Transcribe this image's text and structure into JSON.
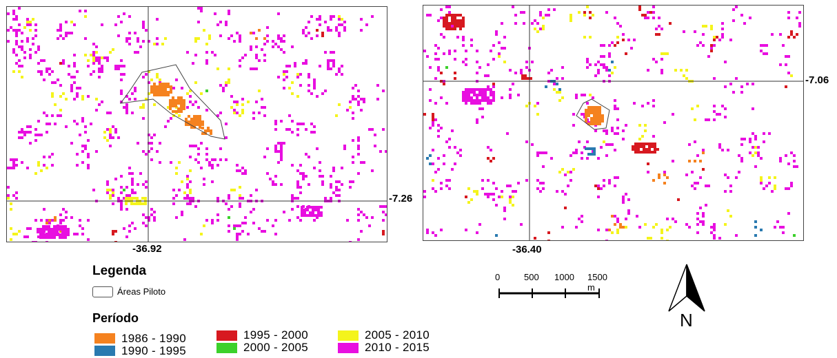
{
  "maps": {
    "left": {
      "lon_label": "-36.92",
      "lat_label": "-7.26"
    },
    "right": {
      "lon_label": "-36.40",
      "lat_label": "-7.06"
    }
  },
  "legend": {
    "title": "Legenda",
    "pilot_areas_label": "Áreas Piloto",
    "period_title": "Período",
    "periods": [
      {
        "label": "1986 - 1990",
        "color": "#f5821f"
      },
      {
        "label": "1990 - 1995",
        "color": "#2a7ab0"
      },
      {
        "label": "1995 - 2000",
        "color": "#d71920"
      },
      {
        "label": "2000 - 2005",
        "color": "#3cd12b"
      },
      {
        "label": "2005 - 2010",
        "color": "#f4f41c"
      },
      {
        "label": "2010 - 2015",
        "color": "#e80fe0"
      }
    ]
  },
  "scalebar": {
    "ticks": [
      "0",
      "500",
      "1000",
      "1500 m"
    ]
  },
  "north_arrow": {
    "label": "N"
  }
}
